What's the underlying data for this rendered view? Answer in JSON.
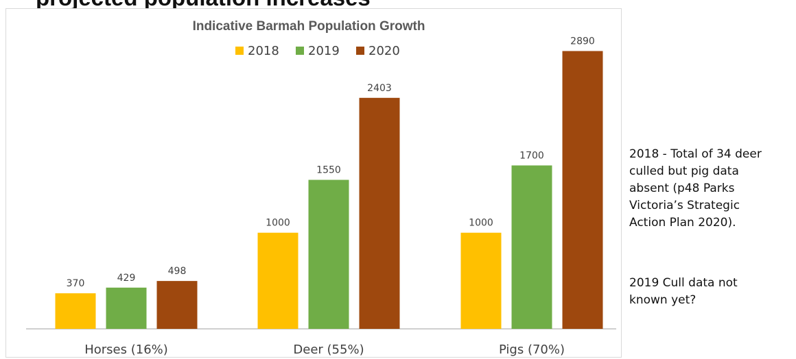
{
  "page": {
    "heading": "projected population increases"
  },
  "chart_data": {
    "type": "bar",
    "title": "Indicative Barmah Population Growth",
    "categories": [
      "Horses (16%)",
      "Deer (55%)",
      "Pigs (70%)"
    ],
    "series": [
      {
        "name": "2018",
        "values": [
          370,
          1000,
          1000
        ],
        "color": "#FFC000"
      },
      {
        "name": "2019",
        "values": [
          429,
          1550,
          1700
        ],
        "color": "#70AD47"
      },
      {
        "name": "2020",
        "values": [
          498,
          2403,
          2890
        ],
        "color": "#9E480E"
      }
    ],
    "xlabel": "",
    "ylabel": "",
    "ylim": [
      0,
      3150
    ],
    "grid": false,
    "legend": "top-center",
    "data_labels": true
  },
  "notes": {
    "note1": [
      "2018 - Total of 34 deer",
      "culled but pig data",
      "absent (p48 Parks",
      "Victoria’s Strategic",
      "Action Plan 2020)."
    ],
    "note2": [
      "2019 Cull data not",
      "known yet?"
    ]
  }
}
